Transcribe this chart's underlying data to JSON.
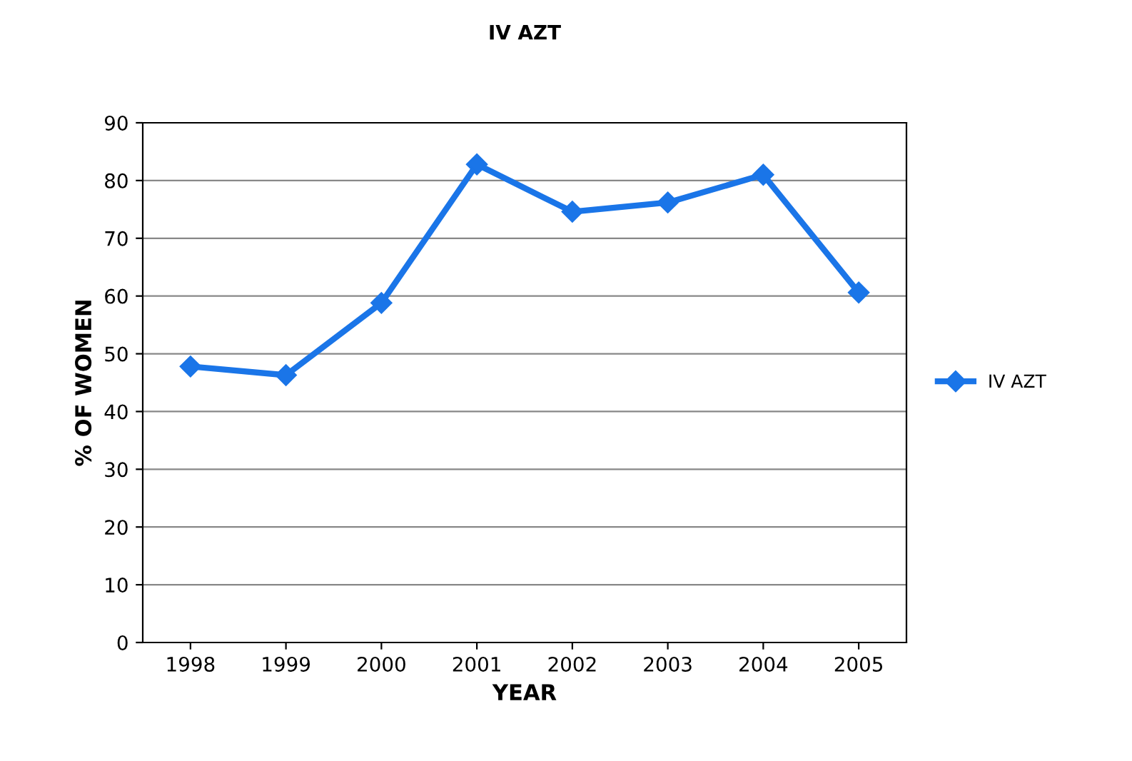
{
  "chart_data": {
    "type": "line",
    "title": "IV AZT",
    "xlabel": "YEAR",
    "ylabel": "% OF WOMEN",
    "categories": [
      "1998",
      "1999",
      "2000",
      "2001",
      "2002",
      "2003",
      "2004",
      "2005"
    ],
    "series": [
      {
        "name": "IV AZT",
        "color": "#1a75e8",
        "values": [
          47.8,
          46.3,
          58.8,
          82.8,
          74.6,
          76.2,
          81.0,
          60.6
        ]
      }
    ],
    "ylim": [
      0,
      90
    ],
    "yticks": [
      0,
      10,
      20,
      30,
      40,
      50,
      60,
      70,
      80,
      90
    ],
    "grid": "y",
    "legend": "right",
    "marker": "diamond",
    "line_style": "solid"
  }
}
